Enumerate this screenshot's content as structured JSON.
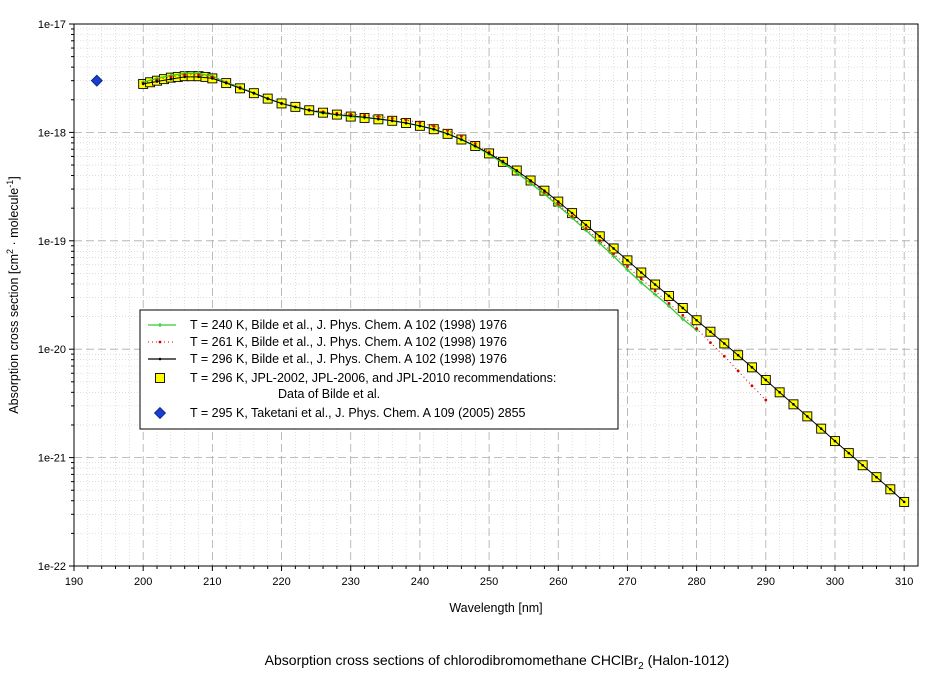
{
  "chart_data": {
    "type": "scatter",
    "title": "",
    "caption": {
      "prefix": "Absorption cross sections of chlorodibromomethane CHClBr",
      "subscript": "2",
      "suffix": " (Halon-1012)"
    },
    "xlabel": "Wavelength [nm]",
    "ylabel": {
      "part1": "Absorption cross section [cm",
      "sup1": "2",
      "part2": " · molecule",
      "sup2": "-1",
      "part3": "]"
    },
    "xlim": [
      190,
      312
    ],
    "ylim": [
      1e-22,
      1e-17
    ],
    "yscale": "log",
    "grid": true,
    "legend_position": "center-left",
    "x_ticks": [
      "190",
      "200",
      "210",
      "220",
      "230",
      "240",
      "250",
      "260",
      "270",
      "280",
      "290",
      "300",
      "310"
    ],
    "y_ticks": [
      "1e-22",
      "1e-21",
      "1e-20",
      "1e-19",
      "1e-18",
      "1e-17"
    ],
    "series": [
      {
        "name": "T = 240 K, Bilde et al., J. Phys. Chem. A 102 (1998) 1976",
        "style": "green-line",
        "color": "#33cc33",
        "x": [
          200,
          202,
          204,
          206,
          208,
          210,
          212,
          214,
          216,
          218,
          220,
          222,
          224,
          226,
          228,
          230,
          232,
          234,
          236,
          238,
          240,
          242,
          244,
          246,
          248,
          250,
          252,
          254,
          256,
          258,
          260,
          262,
          264,
          266,
          268,
          270,
          272,
          274,
          276,
          278,
          280
        ],
        "y": [
          2.9e-18,
          3.15e-18,
          3.35e-18,
          3.5e-18,
          3.5e-18,
          3.3e-18,
          2.9e-18,
          2.6e-18,
          2.3e-18,
          2.05e-18,
          1.85e-18,
          1.7e-18,
          1.6e-18,
          1.5e-18,
          1.45e-18,
          1.4e-18,
          1.37e-18,
          1.33e-18,
          1.28e-18,
          1.22e-18,
          1.15e-18,
          1.07e-18,
          9.7e-19,
          8.6e-19,
          7.4e-19,
          6.3e-19,
          5.2e-19,
          4.25e-19,
          3.4e-19,
          2.7e-19,
          2.1e-19,
          1.63e-19,
          1.25e-19,
          9.5e-20,
          7.2e-20,
          5.4e-20,
          4.1e-20,
          3.2e-20,
          2.5e-20,
          1.9e-20,
          1.5e-20
        ]
      },
      {
        "name": "T = 261 K, Bilde et al., J. Phys. Chem. A 102 (1998) 1976",
        "style": "red-dotted",
        "color": "#dd0000",
        "x": [
          200,
          202,
          204,
          206,
          208,
          210,
          212,
          214,
          216,
          218,
          220,
          222,
          224,
          226,
          228,
          230,
          232,
          234,
          236,
          238,
          240,
          242,
          244,
          246,
          248,
          250,
          252,
          254,
          256,
          258,
          260,
          262,
          264,
          266,
          268,
          270,
          272,
          274,
          276,
          278,
          280,
          282,
          284,
          286,
          288,
          290
        ],
        "y": [
          2.85e-18,
          3.05e-18,
          3.25e-18,
          3.4e-18,
          3.4e-18,
          3.25e-18,
          2.9e-18,
          2.6e-18,
          2.3e-18,
          2.05e-18,
          1.85e-18,
          1.72e-18,
          1.62e-18,
          1.55e-18,
          1.5e-18,
          1.47e-18,
          1.44e-18,
          1.4e-18,
          1.35e-18,
          1.3e-18,
          1.23e-18,
          1.14e-18,
          1.04e-18,
          9.2e-19,
          7.9e-19,
          6.6e-19,
          5.45e-19,
          4.45e-19,
          3.55e-19,
          2.8e-19,
          2.18e-19,
          1.68e-19,
          1.3e-19,
          1e-19,
          7.6e-20,
          5.8e-20,
          4.45e-20,
          3.45e-20,
          2.65e-20,
          2.05e-20,
          1.55e-20,
          1.15e-20,
          8.6e-21,
          6.3e-21,
          4.6e-21,
          3.4e-21
        ]
      },
      {
        "name": "T = 296 K, Bilde et al., J. Phys. Chem. A 102 (1998) 1976",
        "style": "black-line",
        "color": "#000000",
        "x": [
          200,
          202,
          204,
          206,
          208,
          210,
          212,
          214,
          216,
          218,
          220,
          222,
          224,
          226,
          228,
          230,
          232,
          234,
          236,
          238,
          240,
          242,
          244,
          246,
          248,
          250,
          252,
          254,
          256,
          258,
          260,
          262,
          264,
          266,
          268,
          270,
          272,
          274,
          276,
          278,
          280,
          282,
          284,
          286,
          288,
          290,
          292,
          294,
          296,
          298,
          300,
          302,
          304,
          306,
          308,
          310
        ],
        "y": [
          2.8e-18,
          2.95e-18,
          3.1e-18,
          3.25e-18,
          3.25e-18,
          3.15e-18,
          2.85e-18,
          2.55e-18,
          2.3e-18,
          2.05e-18,
          1.85e-18,
          1.72e-18,
          1.6e-18,
          1.52e-18,
          1.46e-18,
          1.42e-18,
          1.38e-18,
          1.33e-18,
          1.28e-18,
          1.22e-18,
          1.15e-18,
          1.07e-18,
          9.7e-19,
          8.6e-19,
          7.5e-19,
          6.4e-19,
          5.35e-19,
          4.45e-19,
          3.6e-19,
          2.9e-19,
          2.3e-19,
          1.8e-19,
          1.4e-19,
          1.1e-19,
          8.5e-20,
          6.6e-20,
          5.1e-20,
          3.95e-20,
          3.1e-20,
          2.4e-20,
          1.85e-20,
          1.45e-20,
          1.13e-20,
          8.8e-21,
          6.8e-21,
          5.2e-21,
          4e-21,
          3.1e-21,
          2.4e-21,
          1.85e-21,
          1.42e-21,
          1.1e-21,
          8.5e-22,
          6.6e-22,
          5.1e-22,
          3.9e-22
        ]
      },
      {
        "name": "T = 296 K, JPL-2002, JPL-2006, and JPL-2010 recommendations:",
        "name_line2": "Data of Bilde et al.",
        "style": "yellow-square",
        "color": "#ffff00",
        "x": [
          200,
          201,
          202,
          203,
          204,
          205,
          206,
          207,
          208,
          209,
          210,
          212,
          214,
          216,
          218,
          220,
          222,
          224,
          226,
          228,
          230,
          232,
          234,
          236,
          238,
          240,
          242,
          244,
          246,
          248,
          250,
          252,
          254,
          256,
          258,
          260,
          262,
          264,
          266,
          268,
          270,
          272,
          274,
          276,
          278,
          280,
          282,
          284,
          286,
          288,
          290,
          292,
          294,
          296,
          298,
          300,
          302,
          304,
          306,
          308,
          310
        ],
        "y": [
          2.8e-18,
          2.9e-18,
          3e-18,
          3.1e-18,
          3.2e-18,
          3.25e-18,
          3.3e-18,
          3.3e-18,
          3.3e-18,
          3.25e-18,
          3.15e-18,
          2.85e-18,
          2.55e-18,
          2.3e-18,
          2.05e-18,
          1.85e-18,
          1.72e-18,
          1.6e-18,
          1.52e-18,
          1.46e-18,
          1.4e-18,
          1.36e-18,
          1.32e-18,
          1.28e-18,
          1.22e-18,
          1.15e-18,
          1.07e-18,
          9.7e-19,
          8.6e-19,
          7.5e-19,
          6.4e-19,
          5.35e-19,
          4.45e-19,
          3.6e-19,
          2.9e-19,
          2.3e-19,
          1.8e-19,
          1.4e-19,
          1.1e-19,
          8.5e-20,
          6.6e-20,
          5.1e-20,
          3.95e-20,
          3.1e-20,
          2.4e-20,
          1.85e-20,
          1.45e-20,
          1.13e-20,
          8.8e-21,
          6.8e-21,
          5.2e-21,
          4e-21,
          3.1e-21,
          2.4e-21,
          1.85e-21,
          1.42e-21,
          1.1e-21,
          8.5e-22,
          6.6e-22,
          5.1e-22,
          3.9e-22
        ]
      },
      {
        "name": "T = 295 K, Taketani et al., J. Phys. Chem. A 109 (2005) 2855",
        "style": "blue-diamond",
        "color": "#1a3fd0",
        "x": [
          193.3
        ],
        "y": [
          3e-18
        ]
      }
    ]
  }
}
